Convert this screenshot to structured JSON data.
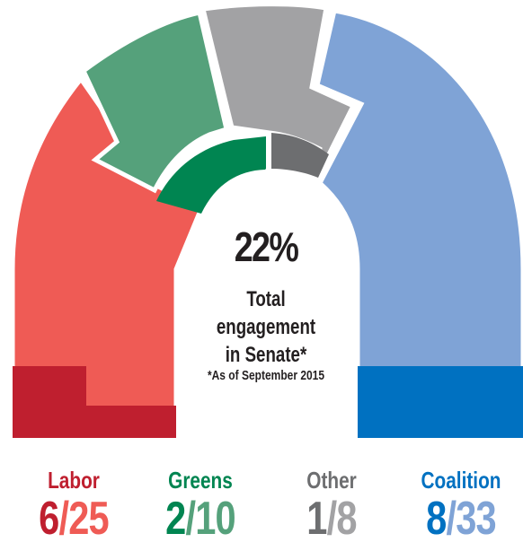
{
  "colors": {
    "labor_light": "#ef5b55",
    "labor_dark": "#bf1f2f",
    "greens_light": "#55a17b",
    "greens_dark": "#008551",
    "other_light": "#a2a2a4",
    "other_dark": "#6d6e70",
    "coalition_light": "#7fa3d6",
    "coalition_dark": "#0071c1",
    "center_text": "#231f20"
  },
  "center": {
    "percent": "22%",
    "line1": "Total engagement",
    "line2": "in Senate*",
    "note": "*As of September 2015"
  },
  "chart_data": {
    "type": "parliament",
    "title": "",
    "series": [
      {
        "name": "Labor",
        "engaged": 6,
        "total": 25,
        "label": "6/25"
      },
      {
        "name": "Greens",
        "engaged": 2,
        "total": 10,
        "label": "2/10"
      },
      {
        "name": "Other",
        "engaged": 1,
        "total": 8,
        "label": "1/8"
      },
      {
        "name": "Coalition",
        "engaged": 8,
        "total": 33,
        "label": "8/33"
      }
    ],
    "overall_percent": 22
  },
  "legend": [
    {
      "name": "Labor",
      "engaged": "6",
      "slash": "/",
      "total": "25"
    },
    {
      "name": "Greens",
      "engaged": "2",
      "slash": "/",
      "total": "10"
    },
    {
      "name": "Other",
      "engaged": "1",
      "slash": "/",
      "total": "8"
    },
    {
      "name": "Coalition",
      "engaged": "8",
      "slash": "/",
      "total": "33"
    }
  ]
}
